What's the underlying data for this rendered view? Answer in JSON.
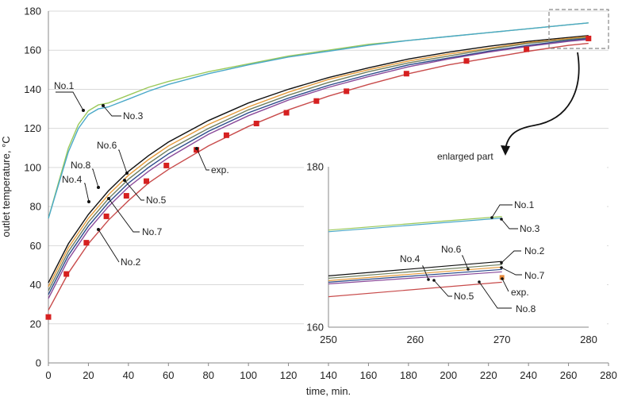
{
  "chart_data": {
    "type": "line",
    "main": {
      "xlabel": "time, min.",
      "ylabel": "outlet temperature, °C",
      "xlim": [
        0,
        280
      ],
      "ylim": [
        0,
        180
      ],
      "xticks": [
        0,
        20,
        40,
        60,
        80,
        100,
        120,
        140,
        160,
        180,
        200,
        220,
        240,
        260,
        280
      ],
      "yticks": [
        0,
        20,
        40,
        60,
        80,
        100,
        120,
        140,
        160,
        180
      ],
      "grid": "horizontal",
      "series": [
        {
          "name": "No.1",
          "color": "#9bc95a",
          "x": [
            0,
            5,
            10,
            15,
            20,
            25,
            30,
            40,
            50,
            60,
            80,
            100,
            120,
            140,
            160,
            180,
            200,
            220,
            240,
            260,
            270
          ],
          "y": [
            74,
            92,
            110,
            122,
            129,
            132,
            133,
            137,
            141,
            144,
            149,
            153,
            157,
            160,
            163,
            165,
            167,
            169,
            171,
            173,
            174
          ]
        },
        {
          "name": "No.3",
          "color": "#4aa8c8",
          "x": [
            0,
            5,
            10,
            15,
            20,
            25,
            30,
            40,
            50,
            60,
            80,
            100,
            120,
            140,
            160,
            180,
            200,
            220,
            240,
            260,
            270
          ],
          "y": [
            74,
            91,
            108,
            120,
            127,
            130,
            131,
            135,
            139,
            142.5,
            148,
            152.5,
            156.5,
            159.5,
            162.5,
            165,
            167,
            169,
            171,
            173,
            174
          ]
        },
        {
          "name": "No.8",
          "color": "#111111",
          "x": [
            0,
            10,
            20,
            30,
            40,
            50,
            60,
            80,
            100,
            120,
            140,
            160,
            180,
            200,
            220,
            240,
            260,
            270
          ],
          "y": [
            41,
            61,
            76,
            88,
            98,
            106,
            113,
            124,
            133,
            140,
            146,
            151,
            155.5,
            159,
            162,
            164.5,
            166.5,
            167.5
          ]
        },
        {
          "name": "No.6",
          "color": "#e59a3a",
          "x": [
            0,
            10,
            20,
            30,
            40,
            50,
            60,
            80,
            100,
            120,
            140,
            160,
            180,
            200,
            220,
            240,
            260,
            270
          ],
          "y": [
            39,
            59,
            74,
            86,
            96,
            104,
            111,
            122,
            131,
            138.5,
            145,
            150,
            154.5,
            158,
            161,
            164,
            166,
            167
          ]
        },
        {
          "name": "No.4",
          "color": "#6f7f5f",
          "x": [
            0,
            10,
            20,
            30,
            40,
            50,
            60,
            80,
            100,
            120,
            140,
            160,
            180,
            200,
            220,
            240,
            260,
            270
          ],
          "y": [
            37,
            57,
            72,
            84,
            94,
            102,
            109,
            120,
            129.5,
            137,
            143.5,
            149,
            153.5,
            157,
            160.5,
            163.5,
            165.5,
            166.5
          ]
        },
        {
          "name": "No.5",
          "color": "#2a4a8a",
          "x": [
            0,
            10,
            20,
            30,
            40,
            50,
            60,
            80,
            100,
            120,
            140,
            160,
            180,
            200,
            220,
            240,
            260,
            270
          ],
          "y": [
            35,
            55,
            70,
            82,
            92,
            100,
            107,
            118.5,
            128,
            135.5,
            142,
            147.5,
            152.5,
            156,
            159.5,
            162.5,
            165,
            166
          ]
        },
        {
          "name": "No.7",
          "color": "#8a4a9a",
          "x": [
            0,
            10,
            20,
            30,
            40,
            50,
            60,
            80,
            100,
            120,
            140,
            160,
            180,
            200,
            220,
            240,
            260,
            270
          ],
          "y": [
            33,
            53,
            68,
            80,
            90,
            98,
            105,
            117,
            126.5,
            134.5,
            141,
            146.5,
            151.5,
            155.5,
            159,
            162,
            164.5,
            165.5
          ]
        },
        {
          "name": "No.2",
          "color": "#c84b4b",
          "x": [
            0,
            10,
            20,
            30,
            40,
            50,
            60,
            80,
            100,
            120,
            140,
            160,
            180,
            200,
            220,
            240,
            260,
            270
          ],
          "y": [
            27,
            46,
            61,
            73,
            83,
            92,
            99,
            111,
            121,
            129.5,
            136.5,
            142.5,
            148,
            152.5,
            156,
            159.5,
            162.5,
            163.5
          ]
        }
      ],
      "experimental": {
        "name": "exp.",
        "color": "#d62020",
        "x": [
          0,
          9,
          19,
          29,
          39,
          49,
          59,
          74,
          89,
          104,
          119,
          134,
          149,
          179,
          209,
          239,
          270
        ],
        "y": [
          23.5,
          45.5,
          61.5,
          75,
          85.5,
          93,
          101,
          109,
          116.5,
          122.5,
          128,
          134,
          139,
          148,
          154.5,
          160.5,
          166
        ]
      },
      "annotations": [
        "No.1",
        "No.3",
        "No.6",
        "No.8",
        "No.4",
        "No.5",
        "No.7",
        "No.2",
        "exp."
      ]
    },
    "inset": {
      "title": "enlarged part",
      "xlim": [
        250,
        280
      ],
      "ylim": [
        160,
        180
      ],
      "xticks": [
        250,
        260,
        270,
        280
      ],
      "yticks": [
        160,
        180
      ],
      "series": [
        {
          "name": "No.1",
          "color": "#9bc95a",
          "x": [
            250,
            270
          ],
          "y": [
            172.1,
            173.8
          ]
        },
        {
          "name": "No.3",
          "color": "#4aa8c8",
          "x": [
            250,
            270
          ],
          "y": [
            171.9,
            173.6
          ]
        },
        {
          "name": "No.8",
          "color": "#111111",
          "x": [
            250,
            270
          ],
          "y": [
            166.4,
            168.2
          ]
        },
        {
          "name": "No.4",
          "color": "#6f7f5f",
          "x": [
            250,
            270
          ],
          "y": [
            166.1,
            167.8
          ]
        },
        {
          "name": "No.6",
          "color": "#e59a3a",
          "x": [
            250,
            270
          ],
          "y": [
            165.8,
            167.5
          ]
        },
        {
          "name": "No.5",
          "color": "#2a4a8a",
          "x": [
            250,
            270
          ],
          "y": [
            165.6,
            167.2
          ]
        },
        {
          "name": "No.7",
          "color": "#8a4a9a",
          "x": [
            250,
            270
          ],
          "y": [
            165.4,
            166.9
          ]
        },
        {
          "name": "No.2",
          "color": "#c84b4b",
          "x": [
            250,
            270
          ],
          "y": [
            163.8,
            165.6
          ]
        }
      ],
      "experimental": {
        "name": "exp.",
        "color": "#e8893a",
        "x": [
          270
        ],
        "y": [
          166.2
        ]
      }
    }
  }
}
